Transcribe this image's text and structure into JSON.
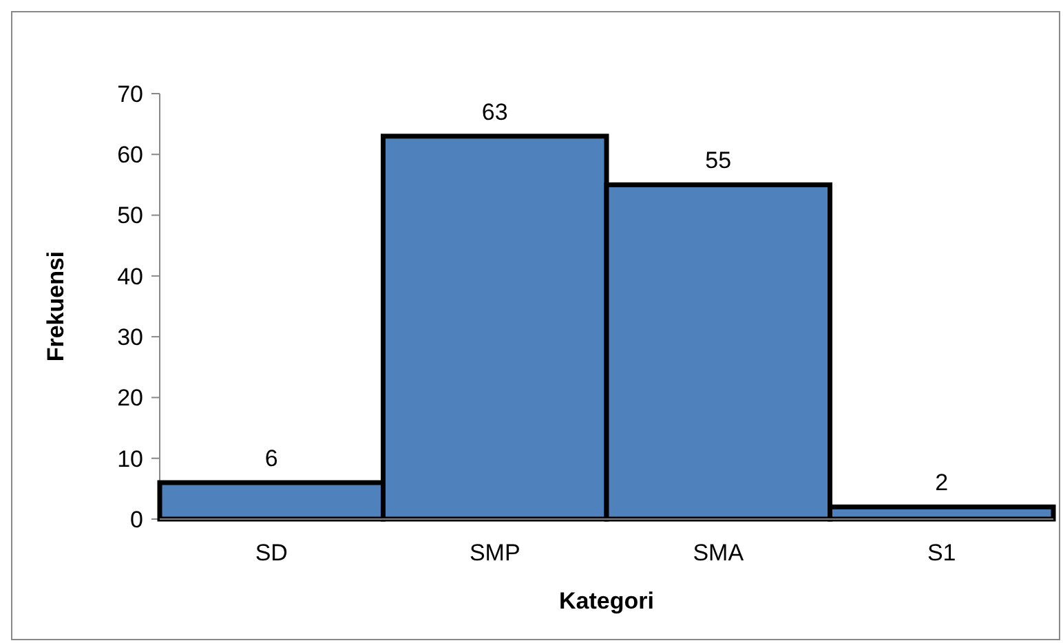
{
  "chart_data": {
    "type": "bar",
    "xlabel": "Kategori",
    "ylabel": "Frekuensi",
    "categories": [
      "SD",
      "SMP",
      "SMA",
      "S1"
    ],
    "values": [
      6,
      63,
      55,
      2
    ],
    "color": "#4f81bd",
    "ylim": [
      0,
      70
    ],
    "yticks": [
      0,
      10,
      20,
      30,
      40,
      50,
      60,
      70
    ],
    "data_labels": true,
    "grid": false
  }
}
